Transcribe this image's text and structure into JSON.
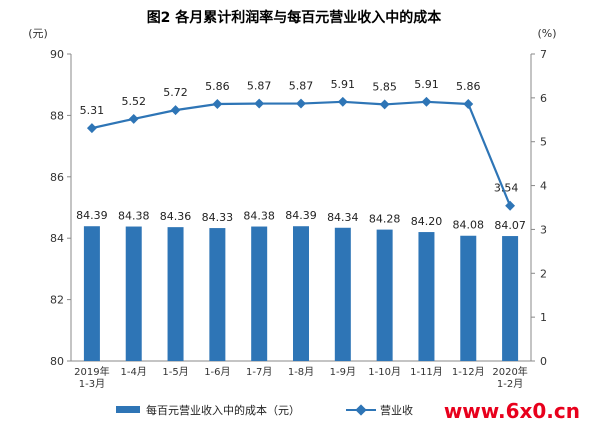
{
  "chart_data": {
    "type": "bar+line",
    "title": "图2  各月累计利润率与每百元营业收入中的成本",
    "categories": [
      [
        "2019年",
        "1-3月"
      ],
      [
        "1-4月"
      ],
      [
        "1-5月"
      ],
      [
        "1-6月"
      ],
      [
        "1-7月"
      ],
      [
        "1-8月"
      ],
      [
        "1-9月"
      ],
      [
        "1-10月"
      ],
      [
        "1-11月"
      ],
      [
        "1-12月"
      ],
      [
        "2020年",
        "1-2月"
      ]
    ],
    "left_axis": {
      "unit": "(元)",
      "ylim": [
        80,
        90
      ],
      "ticks": [
        80,
        82,
        84,
        86,
        88,
        90
      ]
    },
    "right_axis": {
      "unit": "(%)",
      "ylim": [
        0,
        7
      ],
      "ticks": [
        0,
        1,
        2,
        3,
        4,
        5,
        6,
        7
      ]
    },
    "series": [
      {
        "name": "每百元营业收入中的成本（元）",
        "type": "bar",
        "axis": "left",
        "color": "#2e75b6",
        "values": [
          84.39,
          84.38,
          84.36,
          84.33,
          84.38,
          84.39,
          84.34,
          84.28,
          84.2,
          84.08,
          84.07
        ],
        "labels": [
          "84.39",
          "84.38",
          "84.36",
          "84.33",
          "84.38",
          "84.39",
          "84.34",
          "84.28",
          "84.20",
          "84.08",
          "84.07"
        ]
      },
      {
        "name": "营业收入利润率（%）",
        "type": "line",
        "axis": "right",
        "color": "#2e75b6",
        "values": [
          5.31,
          5.52,
          5.72,
          5.86,
          5.87,
          5.87,
          5.91,
          5.85,
          5.91,
          5.86,
          3.54
        ],
        "labels": [
          "5.31",
          "5.52",
          "5.72",
          "5.86",
          "5.87",
          "5.87",
          "5.91",
          "5.85",
          "5.91",
          "5.86",
          "3.54"
        ]
      }
    ],
    "legend": "bottom",
    "grid": false
  },
  "legend_visible": {
    "bar": "每百元营业收入中的成本（元）",
    "line": "营业收"
  },
  "watermark": "www.6x0.cn"
}
